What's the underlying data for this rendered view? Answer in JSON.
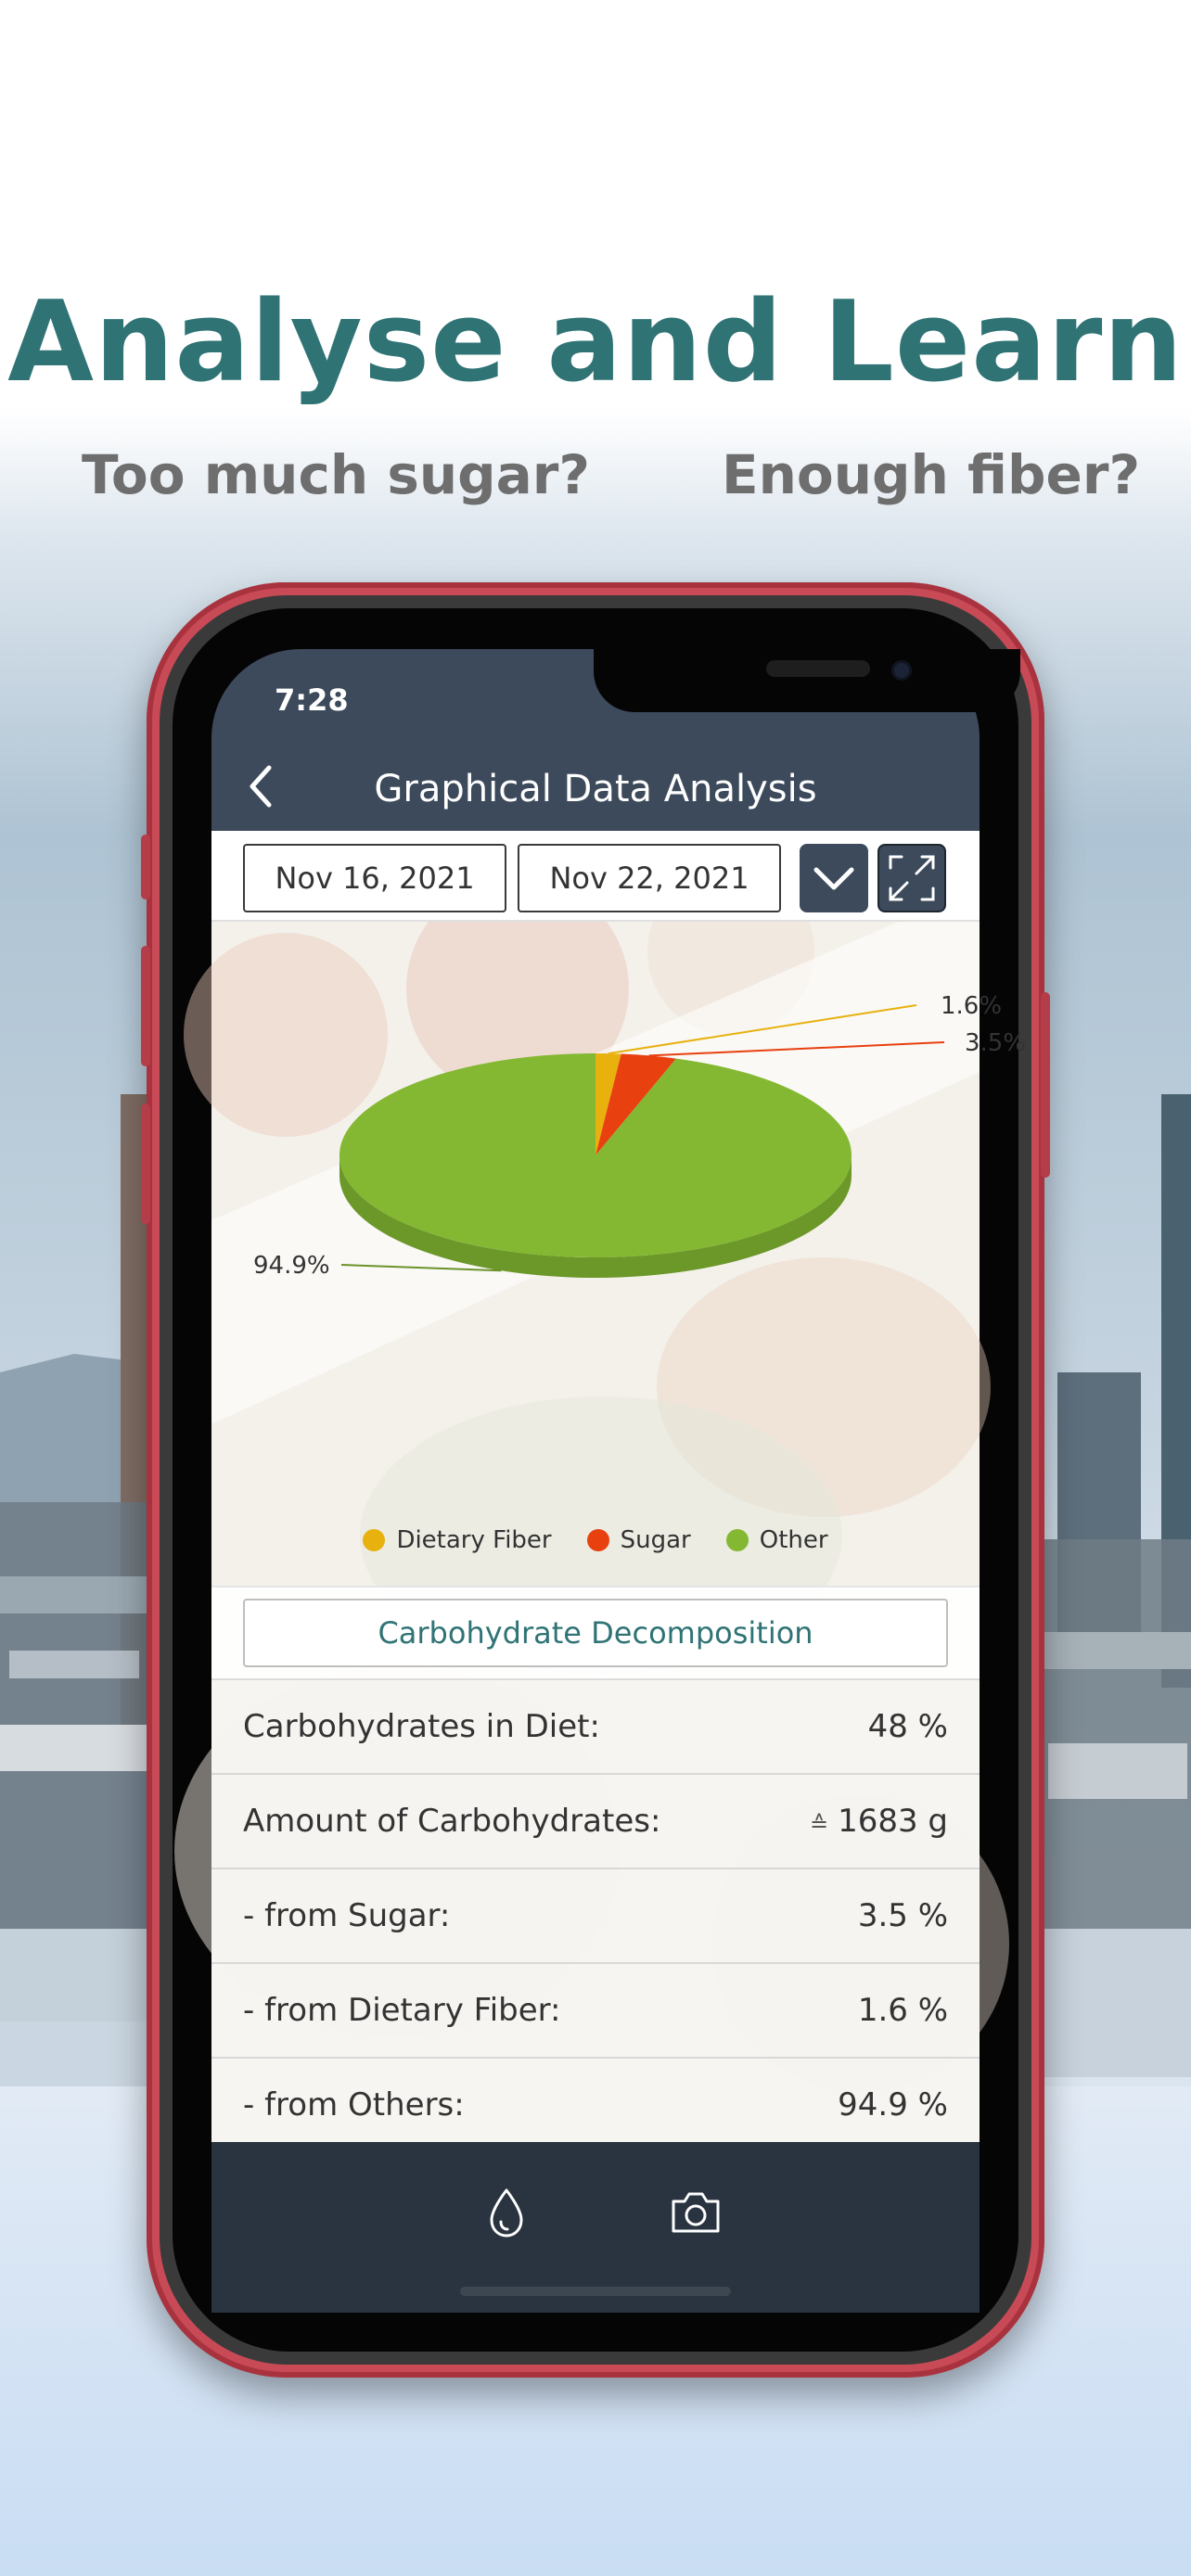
{
  "headline": "Analyse and Learn",
  "subtitle_left": "Too much sugar?",
  "subtitle_right": "Enough fiber?",
  "status_bar": {
    "time": "7:28",
    "signal": "....",
    "wifi_icon": "wifi-icon",
    "battery_icon": "battery-icon"
  },
  "navbar": {
    "title": "Graphical Data Analysis",
    "back_icon": "chevron-left-icon"
  },
  "date_range": {
    "start": "Nov 16, 2021",
    "end": "Nov 22, 2021",
    "dropdown_icon": "chevron-down-icon",
    "expand_icon": "expand-icon"
  },
  "chart_data": {
    "type": "pie",
    "categories": [
      "Dietary Fiber",
      "Sugar",
      "Other"
    ],
    "values": [
      1.6,
      3.5,
      94.9
    ],
    "labels": [
      "1.6%",
      "3.5%",
      "94.9%"
    ],
    "colors": [
      "#e8b10e",
      "#e8400f",
      "#84b832"
    ],
    "legend": "bottom",
    "style": "3d"
  },
  "legend": {
    "fiber": "Dietary Fiber",
    "sugar": "Sugar",
    "other": "Other"
  },
  "decomposition_button": "Carbohydrate Decomposition",
  "rows": [
    {
      "label": "Carbohydrates in Diet:",
      "value": "48 %",
      "prefix": ""
    },
    {
      "label": "Amount of Carbohydrates:",
      "value": "1683 g",
      "prefix": "≙"
    },
    {
      "label": "- from Sugar:",
      "value": "3.5 %",
      "prefix": ""
    },
    {
      "label": "- from Dietary Fiber:",
      "value": "1.6 %",
      "prefix": ""
    },
    {
      "label": "- from Others:",
      "value": "94.9 %",
      "prefix": ""
    }
  ],
  "tabbar": {
    "tab1_icon": "drop-icon",
    "tab2_icon": "camera-icon"
  },
  "colors": {
    "teal": "#2f7375",
    "navbar": "#3c4a5b",
    "tabbar": "#2a3440",
    "frame": "#c84a56"
  }
}
